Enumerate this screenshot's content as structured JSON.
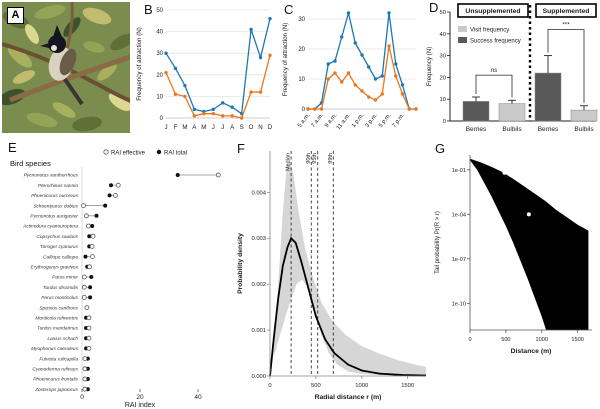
{
  "figure": {
    "panel_labels": {
      "a": "A",
      "b": "B",
      "c": "C",
      "d": "D",
      "e": "E",
      "f": "F",
      "g": "G"
    }
  },
  "colors": {
    "blue": "#1f77b4",
    "orange": "#e8771f",
    "bar_dark": "#595959",
    "bar_light": "#c9c9c9",
    "band_gray": "#d2d2d2",
    "grid": "#e4e4e4"
  },
  "chart_data": [
    {
      "id": "b",
      "type": "line",
      "ylabel": "Frequency of attraction (N)",
      "ylim": [
        0,
        50
      ],
      "yticks": [
        0,
        10,
        20,
        30,
        40,
        50
      ],
      "categories": [
        "J",
        "F",
        "M",
        "A",
        "M",
        "J",
        "J",
        "A",
        "S",
        "O",
        "N",
        "D"
      ],
      "series": [
        {
          "name": "blue",
          "color": "#1f77b4",
          "values": [
            30,
            23,
            15,
            4,
            3,
            4,
            7,
            5,
            2,
            41,
            28,
            46
          ]
        },
        {
          "name": "orange",
          "color": "#e8771f",
          "values": [
            21,
            11,
            10,
            1,
            2,
            2,
            1,
            1,
            0,
            12,
            12,
            29
          ]
        }
      ]
    },
    {
      "id": "c",
      "type": "line",
      "ylabel": "Frequency of attraction (N)",
      "ylim": [
        0,
        33
      ],
      "yticks": [
        0,
        10,
        20,
        30
      ],
      "categories": [
        "5 a.m.",
        "",
        "7 a.m.",
        "",
        "9 a.m.",
        "",
        "11 a.m.",
        "",
        "1 p.m.",
        "",
        "3 p.m.",
        "",
        "5 p.m.",
        "",
        "7 p.m.",
        "",
        ""
      ],
      "series": [
        {
          "name": "blue",
          "color": "#1f77b4",
          "values": [
            0,
            0,
            2,
            15,
            16,
            24,
            32,
            22,
            18,
            14,
            10,
            11,
            32,
            15,
            8,
            0,
            0
          ]
        },
        {
          "name": "orange",
          "color": "#e8771f",
          "values": [
            0,
            0,
            0,
            10,
            12,
            9,
            12,
            8,
            6,
            4,
            3,
            5,
            21,
            11,
            5,
            0,
            0
          ]
        }
      ]
    },
    {
      "id": "d",
      "type": "bar",
      "ylabel": "Frequency (N)",
      "ylim": [
        0,
        50
      ],
      "yticks": [
        0,
        10,
        20,
        30,
        40,
        50
      ],
      "legend": [
        {
          "label": "Visit frequency",
          "color": "#c9c9c9"
        },
        {
          "label": "Success frequency",
          "color": "#595959"
        }
      ],
      "groups": [
        {
          "title": "Unsupplemented",
          "sig": "ns",
          "sig_y": 21,
          "bars": [
            {
              "category": "Berries",
              "value": 9,
              "error": 2,
              "shade": "dark"
            },
            {
              "category": "Bulbils",
              "value": 8,
              "error": 1.5,
              "shade": "light"
            }
          ]
        },
        {
          "title": "Supplemented",
          "sig": "***",
          "sig_y": 42,
          "bars": [
            {
              "category": "Berries",
              "value": 22,
              "error": 8,
              "shade": "dark"
            },
            {
              "category": "Bulbils",
              "value": 5,
              "error": 2,
              "shade": "light"
            }
          ]
        }
      ]
    },
    {
      "id": "e",
      "type": "dot",
      "title": "Bird species",
      "xlabel": "RAI index",
      "xlim": [
        0,
        50
      ],
      "xticks": [
        0,
        20,
        40
      ],
      "legend": [
        {
          "label": "RAI effective",
          "marker": "open"
        },
        {
          "label": "RAI total",
          "marker": "filled"
        }
      ],
      "species": [
        {
          "name": "Pycnonotus xanthorrhous",
          "rai_total": 33,
          "rai_effective": 47
        },
        {
          "name": "Pterorhinus sannio",
          "rai_total": 10,
          "rai_effective": 12.5
        },
        {
          "name": "Phoenicurus auroreus",
          "rai_total": 9.5,
          "rai_effective": 11.5
        },
        {
          "name": "Schoeniparus dubius",
          "rai_total": 8,
          "rai_effective": 0.5
        },
        {
          "name": "Pycnonotus aurigaster",
          "rai_total": 5,
          "rai_effective": 1.5
        },
        {
          "name": "Actinodura cyanouroptera",
          "rai_total": 3.5,
          "rai_effective": 2.2
        },
        {
          "name": "Copsychus saularis",
          "rai_total": 2.5,
          "rai_effective": 3.8
        },
        {
          "name": "Tarsiger cyanurus",
          "rai_total": 2.5,
          "rai_effective": 3.5
        },
        {
          "name": "Calliope calliope",
          "rai_total": 1.2,
          "rai_effective": 3.6
        },
        {
          "name": "Erythrogenys gravivox",
          "rai_total": 1.8,
          "rai_effective": 2.6
        },
        {
          "name": "Parus minor",
          "rai_total": 3.2,
          "rai_effective": 0.8
        },
        {
          "name": "Turdus dissimilis",
          "rai_total": 2.8,
          "rai_effective": 0.8
        },
        {
          "name": "Parus monticolus",
          "rai_total": 2.8,
          "rai_effective": 0.8
        },
        {
          "name": "Spizixos canifrons",
          "rai_total": 1.7,
          "rai_effective": 1.7
        },
        {
          "name": "Monticola rufiventris",
          "rai_total": 1.4,
          "rai_effective": 2.4
        },
        {
          "name": "Turdus mandarinus",
          "rai_total": 1.4,
          "rai_effective": 2.4
        },
        {
          "name": "Lanius schach",
          "rai_total": 1.4,
          "rai_effective": 2.4
        },
        {
          "name": "Myophonus caeruleus",
          "rai_total": 1.4,
          "rai_effective": 2.4
        },
        {
          "name": "Fulvetta ruficapilla",
          "rai_total": 2,
          "rai_effective": 1
        },
        {
          "name": "Cyanoderma ruficeps",
          "rai_total": 2,
          "rai_effective": 1
        },
        {
          "name": "Phoenicurus frontalis",
          "rai_total": 2,
          "rai_effective": 1
        },
        {
          "name": "Zosterops japonicus",
          "rai_total": 2,
          "rai_effective": 1
        }
      ]
    },
    {
      "id": "f",
      "type": "density",
      "xlabel": "Radial distance  r  (m)",
      "ylabel": "Probability density",
      "xlim": [
        0,
        1700
      ],
      "xticks": [
        0,
        500,
        1000,
        1500
      ],
      "ylim": [
        0,
        0.0049
      ],
      "yticks": [
        "0.000",
        "0.001",
        "0.002",
        "0.003",
        "0.004"
      ],
      "quantile_lines": [
        {
          "label": "Median",
          "x": 230
        },
        {
          "label": "90th",
          "x": 450
        },
        {
          "label": "95th",
          "x": 520
        },
        {
          "label": "99th",
          "x": 690
        }
      ],
      "curve": [
        [
          0,
          0
        ],
        [
          40,
          0.0008
        ],
        [
          90,
          0.0017
        ],
        [
          140,
          0.0024
        ],
        [
          190,
          0.0028
        ],
        [
          230,
          0.003
        ],
        [
          280,
          0.0029
        ],
        [
          340,
          0.0025
        ],
        [
          420,
          0.0019
        ],
        [
          500,
          0.0013
        ],
        [
          600,
          0.0008
        ],
        [
          700,
          0.0005
        ],
        [
          850,
          0.00025
        ],
        [
          1000,
          0.00012
        ],
        [
          1200,
          5e-05
        ],
        [
          1450,
          2e-05
        ],
        [
          1700,
          1e-05
        ]
      ],
      "band_upper": [
        [
          40,
          0.0006
        ],
        [
          90,
          0.002
        ],
        [
          140,
          0.0036
        ],
        [
          180,
          0.0045
        ],
        [
          215,
          0.0047
        ],
        [
          255,
          0.0044
        ],
        [
          310,
          0.0036
        ],
        [
          380,
          0.0028
        ],
        [
          460,
          0.0022
        ],
        [
          560,
          0.0016
        ],
        [
          680,
          0.0012
        ],
        [
          820,
          0.0009
        ],
        [
          1000,
          0.00065
        ],
        [
          1200,
          0.00048
        ],
        [
          1400,
          0.00034
        ],
        [
          1600,
          0.00024
        ],
        [
          1700,
          0.0002
        ]
      ],
      "band_lower": [
        [
          40,
          0.0004
        ],
        [
          110,
          0.0009
        ],
        [
          200,
          0.0015
        ],
        [
          290,
          0.002
        ],
        [
          350,
          0.0021
        ],
        [
          420,
          0.0019
        ],
        [
          490,
          0.0014
        ],
        [
          560,
          0.0009
        ],
        [
          640,
          0.0005
        ],
        [
          730,
          0.00025
        ],
        [
          850,
          0.0001
        ],
        [
          1000,
          4e-05
        ],
        [
          1200,
          2e-05
        ],
        [
          1700,
          1e-05
        ]
      ]
    },
    {
      "id": "g",
      "type": "tail",
      "xlabel": "Distance (m)",
      "ylabel": "Tail probability  Pr(R > r)",
      "xlim": [
        0,
        1700
      ],
      "xticks": [
        0,
        500,
        1000,
        1500
      ],
      "yticks": [
        {
          "label": "1e-01",
          "log": -1
        },
        {
          "label": "1e-04",
          "log": -4
        },
        {
          "label": "1e-07",
          "log": -7
        },
        {
          "label": "1e-10",
          "log": -10
        }
      ],
      "ylim_log": [
        0,
        -11.8
      ],
      "region_upper": [
        [
          0,
          -0.25
        ],
        [
          150,
          -0.5
        ],
        [
          300,
          -0.8
        ],
        [
          450,
          -1.15
        ],
        [
          600,
          -1.6
        ],
        [
          750,
          -2.1
        ],
        [
          900,
          -2.6
        ],
        [
          1050,
          -3.1
        ],
        [
          1200,
          -3.7
        ],
        [
          1350,
          -4.2
        ],
        [
          1500,
          -4.7
        ],
        [
          1650,
          -5.1
        ]
      ],
      "region_lower": [
        [
          0,
          -0.35
        ],
        [
          100,
          -1.0
        ],
        [
          200,
          -1.9
        ],
        [
          300,
          -2.8
        ],
        [
          400,
          -3.8
        ],
        [
          500,
          -4.8
        ],
        [
          600,
          -5.9
        ],
        [
          700,
          -7.1
        ],
        [
          800,
          -8.3
        ],
        [
          900,
          -9.6
        ],
        [
          1000,
          -10.9
        ],
        [
          1060,
          -11.8
        ]
      ],
      "points": [
        [
          310,
          -0.4
        ],
        [
          480,
          -1.2
        ],
        [
          820,
          -4.0
        ]
      ]
    }
  ]
}
